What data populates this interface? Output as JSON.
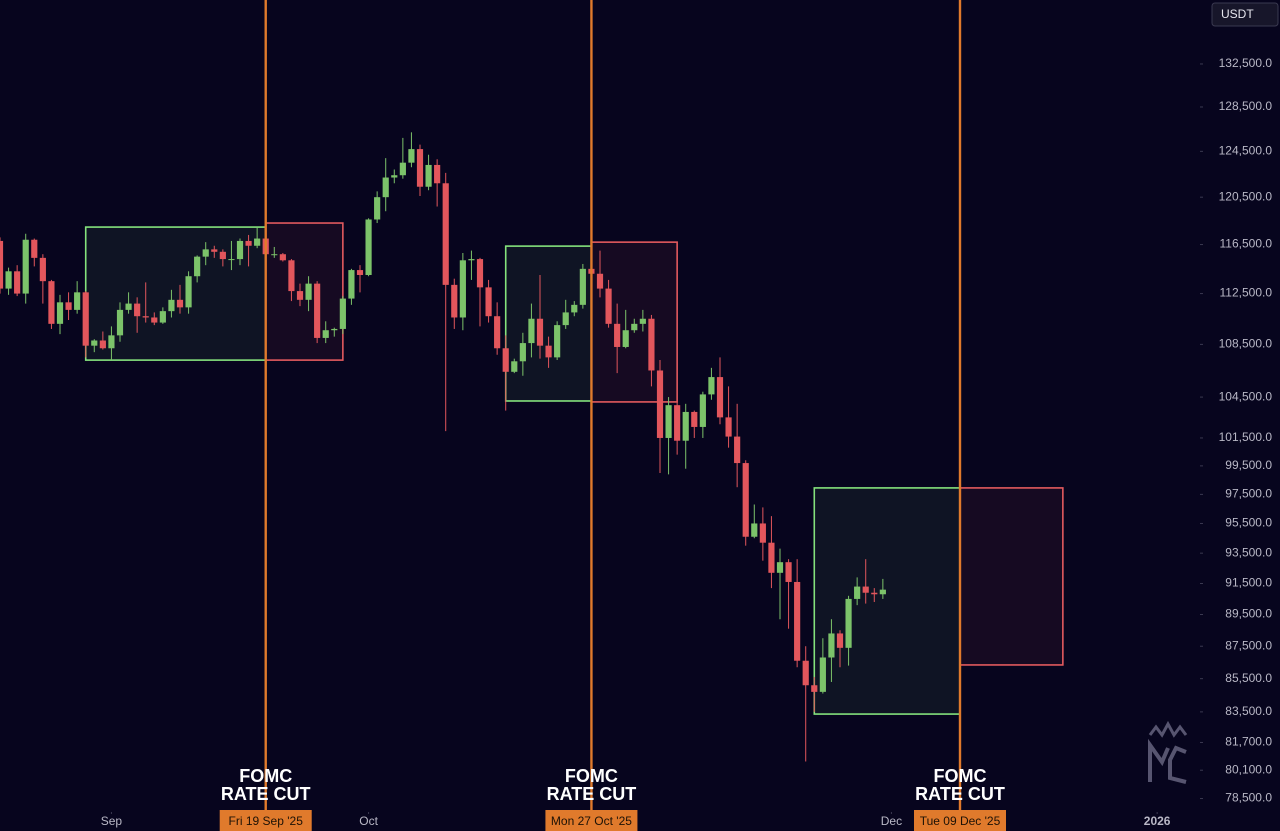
{
  "chart_data": {
    "type": "candlestick",
    "axis_label": "USDT",
    "log_scale": true,
    "up_color": "#7cc36a",
    "down_color": "#e2565c",
    "event_color": "#e07a2c",
    "xlim": [
      "2025-08-19",
      "2026-01-06"
    ],
    "xticks": [
      {
        "value": "2025-09-01",
        "label": "Sep"
      },
      {
        "value": "2025-10-01",
        "label": "Oct"
      },
      {
        "value": "2025-12-01",
        "label": "Dec"
      },
      {
        "value": "2026-01-01",
        "label": "2026"
      }
    ],
    "ylim": [
      77750,
      138680
    ],
    "yticks": [
      {
        "value": 132500,
        "label": "132,500.0"
      },
      {
        "value": 128500,
        "label": "128,500.0"
      },
      {
        "value": 124500,
        "label": "124,500.0"
      },
      {
        "value": 120500,
        "label": "120,500.0"
      },
      {
        "value": 116500,
        "label": "116,500.0"
      },
      {
        "value": 112500,
        "label": "112,500.0"
      },
      {
        "value": 108500,
        "label": "108,500.0"
      },
      {
        "value": 104500,
        "label": "104,500.0"
      },
      {
        "value": 101500,
        "label": "101,500.0"
      },
      {
        "value": 99500,
        "label": "99,500.0"
      },
      {
        "value": 97500,
        "label": "97,500.0"
      },
      {
        "value": 95500,
        "label": "95,500.0"
      },
      {
        "value": 93500,
        "label": "93,500.0"
      },
      {
        "value": 91500,
        "label": "91,500.0"
      },
      {
        "value": 89500,
        "label": "89,500.0"
      },
      {
        "value": 87500,
        "label": "87,500.0"
      },
      {
        "value": 85500,
        "label": "85,500.0"
      },
      {
        "value": 83500,
        "label": "83,500.0"
      },
      {
        "value": 81700,
        "label": "81,700.0"
      },
      {
        "value": 80100,
        "label": "80,100.0"
      },
      {
        "value": 78500,
        "label": "78,500.0"
      }
    ],
    "x": [
      "2025-08-19",
      "2025-08-20",
      "2025-08-21",
      "2025-08-22",
      "2025-08-23",
      "2025-08-24",
      "2025-08-25",
      "2025-08-26",
      "2025-08-27",
      "2025-08-28",
      "2025-08-29",
      "2025-08-30",
      "2025-08-31",
      "2025-09-01",
      "2025-09-02",
      "2025-09-03",
      "2025-09-04",
      "2025-09-05",
      "2025-09-06",
      "2025-09-07",
      "2025-09-08",
      "2025-09-09",
      "2025-09-10",
      "2025-09-11",
      "2025-09-12",
      "2025-09-13",
      "2025-09-14",
      "2025-09-15",
      "2025-09-16",
      "2025-09-17",
      "2025-09-18",
      "2025-09-19",
      "2025-09-20",
      "2025-09-21",
      "2025-09-22",
      "2025-09-23",
      "2025-09-24",
      "2025-09-25",
      "2025-09-26",
      "2025-09-27",
      "2025-09-28",
      "2025-09-29",
      "2025-09-30",
      "2025-10-01",
      "2025-10-02",
      "2025-10-03",
      "2025-10-04",
      "2025-10-05",
      "2025-10-06",
      "2025-10-07",
      "2025-10-08",
      "2025-10-09",
      "2025-10-10",
      "2025-10-11",
      "2025-10-12",
      "2025-10-13",
      "2025-10-14",
      "2025-10-15",
      "2025-10-16",
      "2025-10-17",
      "2025-10-18",
      "2025-10-19",
      "2025-10-20",
      "2025-10-21",
      "2025-10-22",
      "2025-10-23",
      "2025-10-24",
      "2025-10-25",
      "2025-10-26",
      "2025-10-27",
      "2025-10-28",
      "2025-10-29",
      "2025-10-30",
      "2025-10-31",
      "2025-11-01",
      "2025-11-02",
      "2025-11-03",
      "2025-11-04",
      "2025-11-05",
      "2025-11-06",
      "2025-11-07",
      "2025-11-08",
      "2025-11-09",
      "2025-11-10",
      "2025-11-11",
      "2025-11-12",
      "2025-11-13",
      "2025-11-14",
      "2025-11-15",
      "2025-11-16",
      "2025-11-17",
      "2025-11-18",
      "2025-11-19",
      "2025-11-20",
      "2025-11-21",
      "2025-11-22",
      "2025-11-23",
      "2025-11-24",
      "2025-11-25",
      "2025-11-26",
      "2025-11-27",
      "2025-11-28",
      "2025-11-29",
      "2025-11-30"
    ],
    "open": [
      116800,
      112900,
      114300,
      112500,
      116900,
      115400,
      113500,
      110100,
      111800,
      111200,
      112600,
      108400,
      108800,
      108200,
      109200,
      111200,
      111700,
      110700,
      110600,
      110200,
      111100,
      112000,
      111400,
      113900,
      115500,
      116100,
      115900,
      115300,
      115300,
      116800,
      116400,
      117000,
      115700,
      115700,
      115200,
      112700,
      112000,
      113300,
      109000,
      109600,
      109700,
      112100,
      114400,
      114000,
      118600,
      120500,
      122200,
      122400,
      123500,
      124700,
      121400,
      123300,
      121700,
      113200,
      110600,
      115200,
      115300,
      113000,
      110700,
      108200,
      106400,
      107200,
      108600,
      110500,
      108400,
      107500,
      110000,
      111000,
      111600,
      114500,
      114100,
      112900,
      110100,
      108300,
      109600,
      110100,
      110500,
      106500,
      101500,
      103900,
      101300,
      103400,
      102300,
      104700,
      106000,
      103000,
      101600,
      99700,
      94600,
      95500,
      94200,
      92200,
      92900,
      91600,
      86600,
      85100,
      84700,
      86800,
      88300,
      87400,
      90500,
      91300,
      90900,
      90800
    ],
    "high": [
      117100,
      114600,
      114800,
      117400,
      117000,
      115700,
      113600,
      112400,
      112600,
      113500,
      112700,
      108900,
      109500,
      109900,
      111800,
      112600,
      112200,
      113400,
      111000,
      111400,
      112800,
      113200,
      114300,
      115600,
      116700,
      116400,
      116100,
      116800,
      117000,
      117300,
      117900,
      117500,
      116300,
      115800,
      115300,
      113300,
      113900,
      113500,
      110300,
      109800,
      112300,
      114500,
      114800,
      118700,
      121000,
      123900,
      122900,
      125700,
      126200,
      125100,
      124200,
      123800,
      122600,
      113700,
      115800,
      116000,
      115400,
      113600,
      111800,
      109200,
      107400,
      109400,
      111700,
      114000,
      109100,
      110300,
      112000,
      111900,
      114900,
      116400,
      116000,
      113600,
      111700,
      111200,
      110500,
      111200,
      110800,
      107300,
      104500,
      104200,
      104000,
      103500,
      104900,
      106700,
      107500,
      105300,
      104000,
      99900,
      96800,
      96600,
      96000,
      93800,
      93100,
      93100,
      87500,
      85600,
      88000,
      89200,
      88500,
      90700,
      91900,
      93100,
      91200,
      91800
    ],
    "low": [
      112500,
      112400,
      112300,
      111700,
      114700,
      111700,
      109700,
      109300,
      110400,
      110900,
      107500,
      107900,
      108100,
      107300,
      108700,
      110900,
      109400,
      110200,
      110000,
      110100,
      110600,
      110900,
      110900,
      113400,
      114800,
      115400,
      114700,
      114400,
      114800,
      114700,
      116200,
      115100,
      115400,
      115100,
      111900,
      111500,
      111100,
      108600,
      108600,
      109100,
      109300,
      111600,
      112600,
      113900,
      118300,
      119300,
      121700,
      122100,
      123100,
      120600,
      121100,
      119700,
      102000,
      109700,
      109600,
      113600,
      109900,
      110200,
      107700,
      103500,
      106300,
      106100,
      107500,
      107400,
      106700,
      107300,
      109700,
      110700,
      111300,
      113900,
      112200,
      109800,
      106300,
      108200,
      109400,
      109500,
      105300,
      99000,
      98900,
      100300,
      99300,
      101500,
      101500,
      104300,
      102500,
      100800,
      98000,
      94000,
      94500,
      93000,
      91200,
      89200,
      88600,
      86200,
      80600,
      83500,
      84600,
      85300,
      86200,
      86300,
      90100,
      90200,
      90300,
      90500
    ],
    "close": [
      112900,
      114300,
      112500,
      116900,
      115400,
      113500,
      110100,
      111800,
      111200,
      112600,
      108400,
      108800,
      108200,
      109200,
      111200,
      111700,
      110700,
      110600,
      110200,
      111100,
      112000,
      111400,
      113900,
      115500,
      116100,
      115900,
      115300,
      115300,
      116800,
      116400,
      117000,
      115700,
      115700,
      115200,
      112700,
      112000,
      113300,
      109000,
      109600,
      109700,
      112100,
      114400,
      114000,
      118600,
      120500,
      122200,
      122400,
      123500,
      124700,
      121400,
      123300,
      121700,
      113200,
      110600,
      115200,
      115300,
      113000,
      110700,
      108200,
      106400,
      107200,
      108600,
      110500,
      108400,
      107500,
      110000,
      111000,
      111600,
      114500,
      114100,
      112900,
      110100,
      108300,
      109600,
      110100,
      110500,
      106500,
      101500,
      103900,
      101300,
      103400,
      102300,
      104700,
      106000,
      103000,
      101600,
      99700,
      94600,
      95500,
      94200,
      92200,
      92900,
      91600,
      86600,
      85100,
      84700,
      86800,
      88300,
      87400,
      90500,
      91300,
      90900,
      90800,
      91100
    ],
    "boxes": [
      {
        "start": "2025-08-29",
        "end": "2025-09-19",
        "low": 107290,
        "high": 117960,
        "color": "#84e27c"
      },
      {
        "start": "2025-09-19",
        "end": "2025-09-28",
        "low": 107290,
        "high": 118300,
        "color": "#e25a5e"
      },
      {
        "start": "2025-10-17",
        "end": "2025-10-27",
        "low": 104210,
        "high": 116370,
        "color": "#84e27c"
      },
      {
        "start": "2025-10-27",
        "end": "2025-11-06",
        "low": 104140,
        "high": 116700,
        "color": "#e25a5e"
      },
      {
        "start": "2025-11-22",
        "end": "2025-12-09",
        "low": 83370,
        "high": 97950,
        "color": "#84e27c"
      },
      {
        "start": "2025-12-09",
        "end": "2025-12-21",
        "low": 86340,
        "high": 97950,
        "color": "#e25a5e"
      }
    ],
    "events": [
      {
        "date": "2025-09-19",
        "label": "Fri 19 Sep '25",
        "text": [
          "FOMC",
          "RATE CUT"
        ]
      },
      {
        "date": "2025-10-27",
        "label": "Mon 27 Oct '25",
        "text": [
          "FOMC",
          "RATE CUT"
        ]
      },
      {
        "date": "2025-12-09",
        "label": "Tue 09 Dec '25",
        "text": [
          "FOMC",
          "RATE CUT"
        ]
      }
    ]
  }
}
